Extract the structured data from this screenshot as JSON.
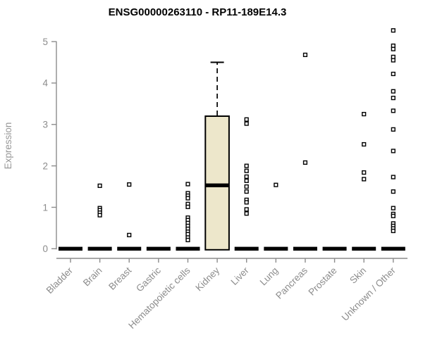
{
  "chart_data": {
    "type": "boxplot",
    "title": "ENSG00000263110 - RP11-189E14.3",
    "ylabel": "Expression",
    "xlabel": "",
    "ylim": [
      0,
      5.3
    ],
    "yticks": [
      0,
      1,
      2,
      3,
      4,
      5
    ],
    "grid": false,
    "legend": false,
    "colors": {
      "box_fill": "#EDE7CB",
      "box_stroke": "#000000",
      "point_stroke": "#000000",
      "point_fill": "#ffffff",
      "zero_bar": "#000000",
      "axis": "#8c8c8c",
      "title": "#000000"
    },
    "categories": [
      "Bladder",
      "Brain",
      "Breast",
      "Gastric",
      "Hematopoietic cells",
      "Kidney",
      "Liver",
      "Lung",
      "Pancreas",
      "Prostate",
      "Skin",
      "Unknown / Other"
    ],
    "groups": [
      {
        "label": "Bladder",
        "zero_bar": true,
        "points": []
      },
      {
        "label": "Brain",
        "zero_bar": true,
        "points": [
          1.52,
          0.98,
          0.93,
          0.87,
          0.81
        ]
      },
      {
        "label": "Breast",
        "zero_bar": true,
        "points": [
          1.55,
          0.33
        ]
      },
      {
        "label": "Gastric",
        "zero_bar": true,
        "points": []
      },
      {
        "label": "Hematopoietic cells",
        "zero_bar": true,
        "points": [
          1.56,
          1.34,
          1.28,
          1.22,
          1.08,
          1.01,
          0.75,
          0.69,
          0.62,
          0.55,
          0.48,
          0.41,
          0.35,
          0.27,
          0.21
        ]
      },
      {
        "label": "Kidney",
        "zero_bar": false,
        "box": {
          "whisker_low": 0,
          "q1": 0,
          "median": 1.53,
          "q3": 3.2,
          "whisker_high": 4.5
        },
        "points": []
      },
      {
        "label": "Liver",
        "zero_bar": true,
        "points": [
          3.12,
          3.02,
          2.0,
          1.88,
          1.74,
          1.64,
          1.5,
          1.38,
          1.18,
          1.12,
          0.95,
          0.85
        ]
      },
      {
        "label": "Lung",
        "zero_bar": true,
        "points": [
          1.54
        ]
      },
      {
        "label": "Pancreas",
        "zero_bar": true,
        "points": [
          4.68,
          2.08
        ]
      },
      {
        "label": "Prostate",
        "zero_bar": true,
        "points": []
      },
      {
        "label": "Skin",
        "zero_bar": true,
        "points": [
          3.25,
          2.52,
          1.84,
          1.68
        ]
      },
      {
        "label": "Unknown / Other",
        "zero_bar": true,
        "points": [
          5.27,
          4.9,
          4.82,
          4.63,
          4.55,
          4.22,
          3.8,
          3.64,
          3.33,
          2.88,
          2.36,
          1.73,
          1.38,
          0.98,
          0.84,
          0.79,
          0.61,
          0.55,
          0.49,
          0.43
        ]
      }
    ]
  }
}
